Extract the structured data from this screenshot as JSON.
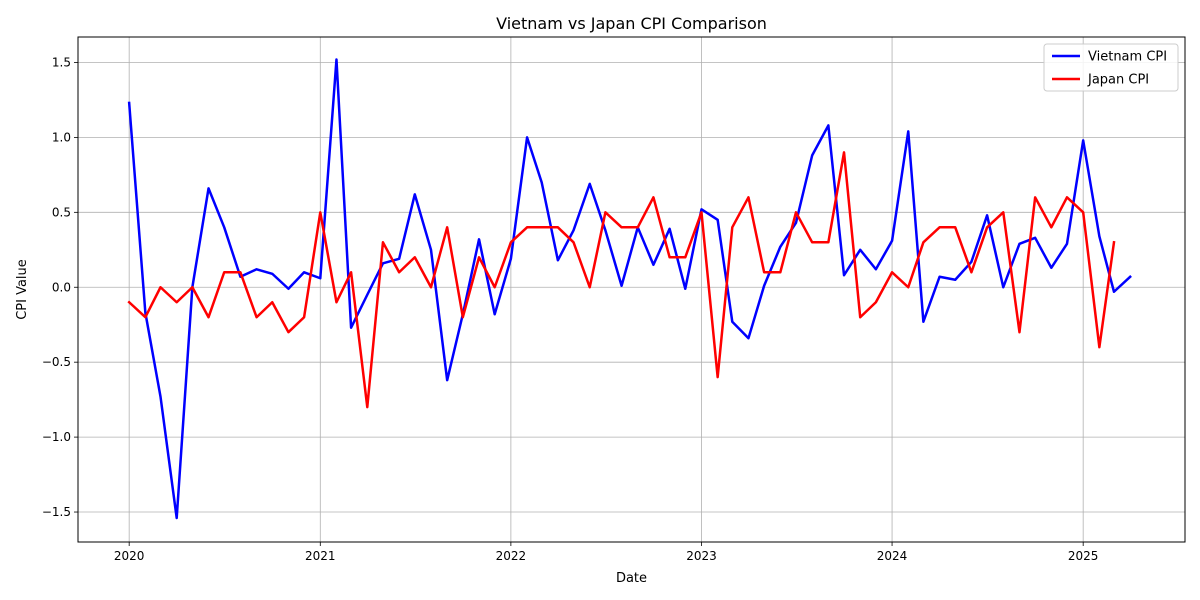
{
  "chart_data": {
    "type": "line",
    "title": "Vietnam vs Japan CPI Comparison",
    "xlabel": "Date",
    "ylabel": "CPI Value",
    "x_range": [
      "2019-09-25",
      "2025-07-15"
    ],
    "ylim": [
      -1.7,
      1.67
    ],
    "x_ticks": [
      {
        "label": "2020",
        "date": "2020-01-01"
      },
      {
        "label": "2021",
        "date": "2021-01-01"
      },
      {
        "label": "2022",
        "date": "2022-01-01"
      },
      {
        "label": "2023",
        "date": "2023-01-01"
      },
      {
        "label": "2024",
        "date": "2024-01-01"
      },
      {
        "label": "2025",
        "date": "2025-01-01"
      }
    ],
    "y_ticks": [
      {
        "label": "1.5",
        "value": 1.5
      },
      {
        "label": "1.0",
        "value": 1.0
      },
      {
        "label": "0.5",
        "value": 0.5
      },
      {
        "label": "0.0",
        "value": 0.0
      },
      {
        "label": "−0.5",
        "value": -0.5
      },
      {
        "label": "−1.0",
        "value": -1.0
      },
      {
        "label": "−1.5",
        "value": -1.5
      }
    ],
    "grid": true,
    "legend_position": "top-right",
    "series": [
      {
        "name": "Vietnam CPI",
        "color": "#0000ff",
        "start": "2020-01",
        "values": [
          1.23,
          -0.17,
          -0.73,
          -1.54,
          0.0,
          0.66,
          0.4,
          0.07,
          0.12,
          0.09,
          -0.01,
          0.1,
          0.06,
          1.52,
          -0.27,
          -0.05,
          0.16,
          0.19,
          0.62,
          0.25,
          -0.62,
          -0.18,
          0.32,
          -0.18,
          0.19,
          1.0,
          0.7,
          0.18,
          0.38,
          0.69,
          0.38,
          0.01,
          0.4,
          0.15,
          0.39,
          -0.01,
          0.52,
          0.45,
          -0.23,
          -0.34,
          0.01,
          0.27,
          0.43,
          0.88,
          1.08,
          0.08,
          0.25,
          0.12,
          0.31,
          1.04,
          -0.23,
          0.07,
          0.05,
          0.17,
          0.48,
          0.0,
          0.29,
          0.33,
          0.13,
          0.29,
          0.98,
          0.34,
          -0.03,
          0.07
        ]
      },
      {
        "name": "Japan CPI",
        "color": "#ff0000",
        "start": "2020-01",
        "values": [
          -0.1,
          -0.2,
          0.0,
          -0.1,
          0.0,
          -0.2,
          0.1,
          0.1,
          -0.2,
          -0.1,
          -0.3,
          -0.2,
          0.5,
          -0.1,
          0.1,
          -0.8,
          0.3,
          0.1,
          0.2,
          0.0,
          0.4,
          -0.2,
          0.2,
          0.0,
          0.3,
          0.4,
          0.4,
          0.4,
          0.3,
          0.0,
          0.5,
          0.4,
          0.4,
          0.6,
          0.2,
          0.2,
          0.5,
          -0.6,
          0.4,
          0.6,
          0.1,
          0.1,
          0.5,
          0.3,
          0.3,
          0.9,
          -0.2,
          -0.1,
          0.1,
          0.0,
          0.3,
          0.4,
          0.4,
          0.1,
          0.4,
          0.5,
          -0.3,
          0.6,
          0.4,
          0.6,
          0.5,
          -0.4,
          0.3
        ]
      }
    ]
  }
}
